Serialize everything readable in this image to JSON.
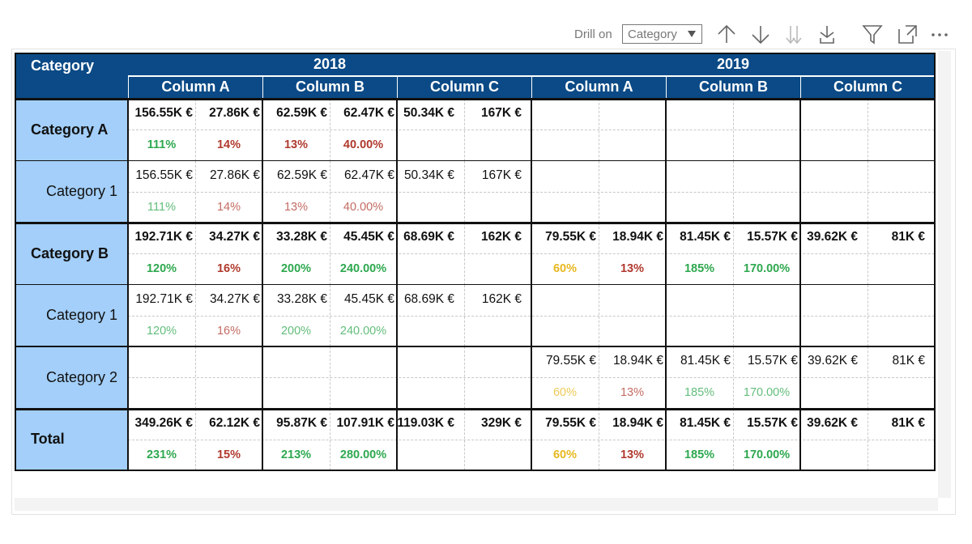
{
  "toolbar": {
    "drill_label": "Drill on",
    "drill_value": "Category"
  },
  "header": {
    "corner": "Category",
    "years": [
      "2018",
      "2019"
    ],
    "columns": [
      "Column A",
      "Column B",
      "Column C"
    ]
  },
  "rows": [
    {
      "label": "Category A",
      "bold": true,
      "cells": [
        {
          "value": "156.55K €",
          "pct": "111%",
          "color": "#2ea84f"
        },
        {
          "value": "27.86K €",
          "pct": "14%",
          "color": "#b03a2e"
        },
        {
          "value": "62.59K €",
          "pct": "13%",
          "color": "#b03a2e"
        },
        {
          "value": "62.47K €",
          "pct": "40.00%",
          "color": "#b03a2e"
        },
        {
          "value": "50.34K €"
        },
        {
          "value": "167K €"
        },
        null,
        null,
        null,
        null,
        null,
        null
      ]
    },
    {
      "label": "Category 1",
      "bold": false,
      "cells": [
        {
          "value": "156.55K €",
          "pct": "111%",
          "color": "#2ea84f"
        },
        {
          "value": "27.86K €",
          "pct": "14%",
          "color": "#b03a2e"
        },
        {
          "value": "62.59K €",
          "pct": "13%",
          "color": "#b03a2e"
        },
        {
          "value": "62.47K €",
          "pct": "40.00%",
          "color": "#b03a2e"
        },
        {
          "value": "50.34K €"
        },
        {
          "value": "167K €"
        },
        null,
        null,
        null,
        null,
        null,
        null
      ]
    },
    {
      "label": "Category B",
      "bold": true,
      "cells": [
        {
          "value": "192.71K €",
          "pct": "120%",
          "color": "#2ea84f"
        },
        {
          "value": "34.27K €",
          "pct": "16%",
          "color": "#b03a2e"
        },
        {
          "value": "33.28K €",
          "pct": "200%",
          "color": "#2ea84f"
        },
        {
          "value": "45.45K €",
          "pct": "240.00%",
          "color": "#2ea84f"
        },
        {
          "value": "68.69K €"
        },
        {
          "value": "162K €"
        },
        {
          "value": "79.55K €",
          "pct": "60%",
          "color": "#e8b820"
        },
        {
          "value": "18.94K €",
          "pct": "13%",
          "color": "#b03a2e"
        },
        {
          "value": "81.45K €",
          "pct": "185%",
          "color": "#2ea84f"
        },
        {
          "value": "15.57K €",
          "pct": "170.00%",
          "color": "#2ea84f"
        },
        {
          "value": "39.62K €"
        },
        {
          "value": "81K €"
        }
      ]
    },
    {
      "label": "Category 1",
      "bold": false,
      "cells": [
        {
          "value": "192.71K €",
          "pct": "120%",
          "color": "#2ea84f"
        },
        {
          "value": "34.27K €",
          "pct": "16%",
          "color": "#b03a2e"
        },
        {
          "value": "33.28K €",
          "pct": "200%",
          "color": "#2ea84f"
        },
        {
          "value": "45.45K €",
          "pct": "240.00%",
          "color": "#2ea84f"
        },
        {
          "value": "68.69K €"
        },
        {
          "value": "162K €"
        },
        null,
        null,
        null,
        null,
        null,
        null
      ]
    },
    {
      "label": "Category 2",
      "bold": false,
      "cells": [
        null,
        null,
        null,
        null,
        null,
        null,
        {
          "value": "79.55K €",
          "pct": "60%",
          "color": "#e8b820"
        },
        {
          "value": "18.94K €",
          "pct": "13%",
          "color": "#b03a2e"
        },
        {
          "value": "81.45K €",
          "pct": "185%",
          "color": "#2ea84f"
        },
        {
          "value": "15.57K €",
          "pct": "170.00%",
          "color": "#2ea84f"
        },
        {
          "value": "39.62K €"
        },
        {
          "value": "81K €"
        }
      ]
    },
    {
      "label": "Total",
      "bold": true,
      "cells": [
        {
          "value": "349.26K €",
          "pct": "231%",
          "color": "#2ea84f"
        },
        {
          "value": "62.12K €",
          "pct": "15%",
          "color": "#b03a2e"
        },
        {
          "value": "95.87K €",
          "pct": "213%",
          "color": "#2ea84f"
        },
        {
          "value": "107.91K €",
          "pct": "280.00%",
          "color": "#2ea84f"
        },
        {
          "value": "119.03K €"
        },
        {
          "value": "329K €"
        },
        {
          "value": "79.55K €",
          "pct": "60%",
          "color": "#e8b820"
        },
        {
          "value": "18.94K €",
          "pct": "13%",
          "color": "#b03a2e"
        },
        {
          "value": "81.45K €",
          "pct": "185%",
          "color": "#2ea84f"
        },
        {
          "value": "15.57K €",
          "pct": "170.00%",
          "color": "#2ea84f"
        },
        {
          "value": "39.62K €"
        },
        {
          "value": "81K €"
        }
      ]
    }
  ]
}
